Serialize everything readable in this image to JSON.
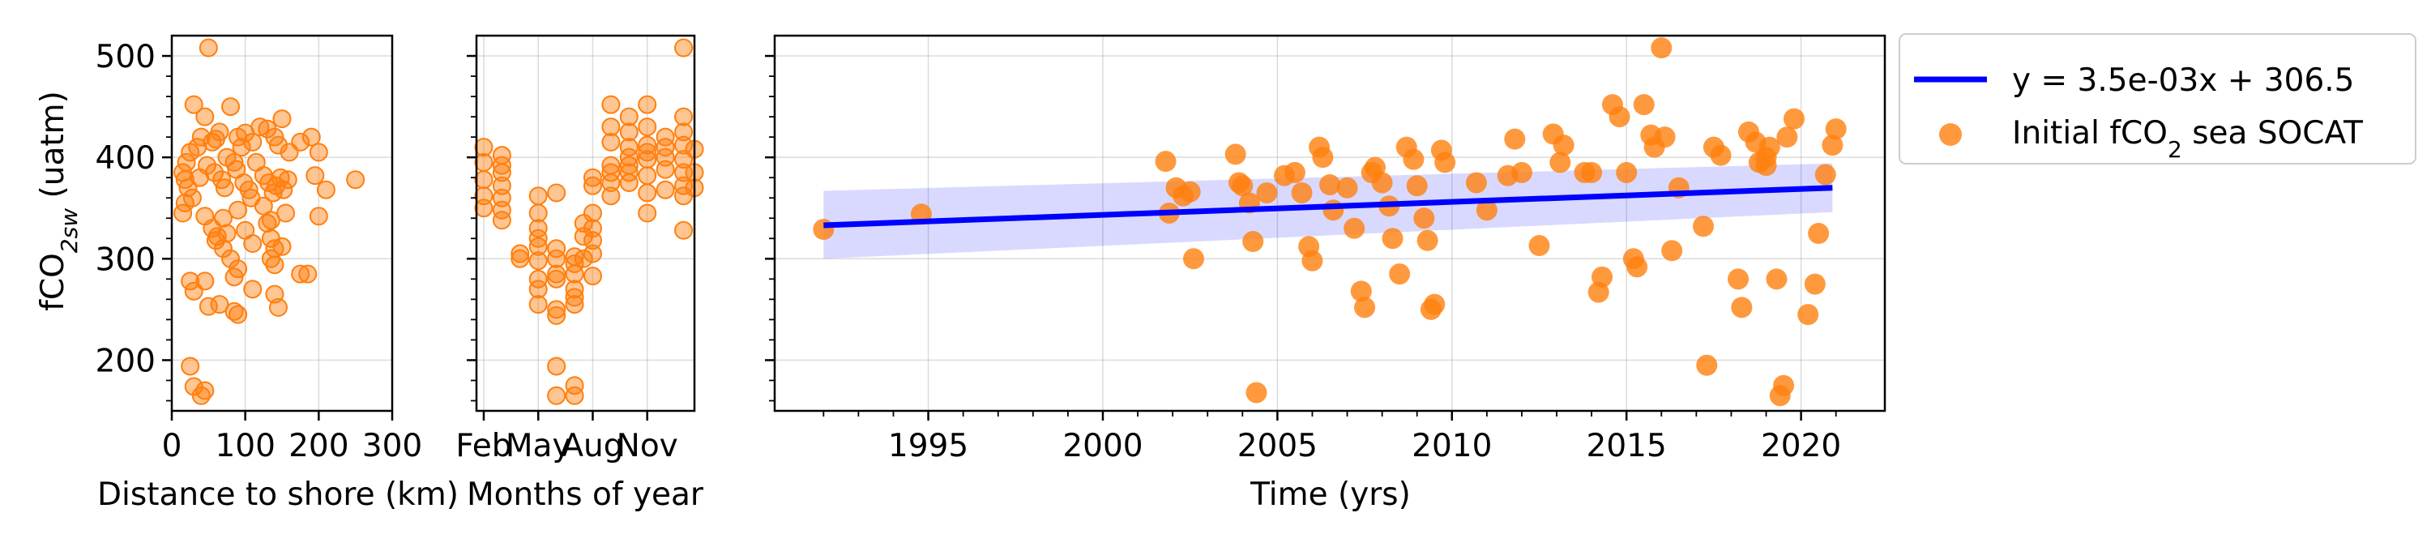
{
  "chart_data": [
    {
      "type": "scatter",
      "panel": "distance",
      "xlabel": "Distance to shore (km)",
      "ylabel_main": "fCO",
      "ylabel_sub": "2sw",
      "ylabel_unit": " (uatm)",
      "xlim": [
        0,
        300
      ],
      "ylim": [
        150,
        520
      ],
      "xticks": [
        0,
        100,
        200,
        300
      ],
      "yticks": [
        200,
        300,
        400,
        500
      ],
      "grid": true,
      "marker_color": "#ff7f0e",
      "points": [
        [
          50,
          508
        ],
        [
          30,
          452
        ],
        [
          45,
          440
        ],
        [
          80,
          450
        ],
        [
          120,
          430
        ],
        [
          150,
          438
        ],
        [
          20,
          395
        ],
        [
          25,
          405
        ],
        [
          35,
          410
        ],
        [
          40,
          420
        ],
        [
          55,
          415
        ],
        [
          60,
          418
        ],
        [
          65,
          425
        ],
        [
          75,
          400
        ],
        [
          85,
          395
        ],
        [
          90,
          420
        ],
        [
          95,
          410
        ],
        [
          100,
          424
        ],
        [
          110,
          415
        ],
        [
          130,
          428
        ],
        [
          140,
          420
        ],
        [
          145,
          412
        ],
        [
          160,
          405
        ],
        [
          175,
          415
        ],
        [
          190,
          420
        ],
        [
          200,
          405
        ],
        [
          15,
          385
        ],
        [
          18,
          378
        ],
        [
          22,
          370
        ],
        [
          28,
          360
        ],
        [
          38,
          380
        ],
        [
          48,
          392
        ],
        [
          58,
          385
        ],
        [
          68,
          378
        ],
        [
          72,
          370
        ],
        [
          88,
          388
        ],
        [
          98,
          375
        ],
        [
          105,
          368
        ],
        [
          115,
          395
        ],
        [
          125,
          382
        ],
        [
          132,
          375
        ],
        [
          138,
          365
        ],
        [
          142,
          372
        ],
        [
          148,
          380
        ],
        [
          152,
          368
        ],
        [
          158,
          378
        ],
        [
          195,
          382
        ],
        [
          210,
          368
        ],
        [
          250,
          378
        ],
        [
          15,
          345
        ],
        [
          18,
          355
        ],
        [
          45,
          342
        ],
        [
          70,
          340
        ],
        [
          90,
          348
        ],
        [
          125,
          352
        ],
        [
          135,
          338
        ],
        [
          155,
          345
        ],
        [
          200,
          342
        ],
        [
          108,
          360
        ],
        [
          55,
          330
        ],
        [
          60,
          318
        ],
        [
          62,
          322
        ],
        [
          70,
          310
        ],
        [
          75,
          325
        ],
        [
          80,
          300
        ],
        [
          100,
          328
        ],
        [
          110,
          315
        ],
        [
          130,
          335
        ],
        [
          135,
          320
        ],
        [
          140,
          310
        ],
        [
          150,
          312
        ],
        [
          135,
          300
        ],
        [
          140,
          294
        ],
        [
          25,
          278
        ],
        [
          30,
          268
        ],
        [
          45,
          278
        ],
        [
          85,
          282
        ],
        [
          90,
          290
        ],
        [
          110,
          270
        ],
        [
          140,
          265
        ],
        [
          175,
          285
        ],
        [
          185,
          285
        ],
        [
          50,
          253
        ],
        [
          65,
          255
        ],
        [
          85,
          248
        ],
        [
          90,
          245
        ],
        [
          145,
          252
        ],
        [
          25,
          194
        ],
        [
          30,
          174
        ],
        [
          40,
          165
        ],
        [
          45,
          170
        ]
      ]
    },
    {
      "type": "scatter",
      "panel": "months",
      "xlabel": "Months of year",
      "xlim": [
        0.6,
        12.6
      ],
      "ylim": [
        150,
        520
      ],
      "xticks": [
        1,
        4,
        7,
        10
      ],
      "xticklabels": [
        "Feb",
        "May",
        "Aug",
        "Nov"
      ],
      "grid": true,
      "marker_color": "#ff7f0e",
      "points": [
        [
          1,
          410
        ],
        [
          1,
          395
        ],
        [
          1,
          378
        ],
        [
          1,
          362
        ],
        [
          1,
          350
        ],
        [
          2,
          402
        ],
        [
          2,
          392
        ],
        [
          2,
          385
        ],
        [
          2,
          372
        ],
        [
          2,
          360
        ],
        [
          2,
          348
        ],
        [
          2,
          338
        ],
        [
          3,
          305
        ],
        [
          3,
          300
        ],
        [
          4,
          362
        ],
        [
          4,
          345
        ],
        [
          4,
          330
        ],
        [
          4,
          320
        ],
        [
          4,
          312
        ],
        [
          4,
          298
        ],
        [
          4,
          280
        ],
        [
          4,
          270
        ],
        [
          4,
          255
        ],
        [
          5,
          310
        ],
        [
          5,
          300
        ],
        [
          5,
          285
        ],
        [
          5,
          280
        ],
        [
          5,
          250
        ],
        [
          5,
          244
        ],
        [
          5,
          194
        ],
        [
          5,
          165
        ],
        [
          5,
          365
        ],
        [
          6,
          302
        ],
        [
          6,
          295
        ],
        [
          6,
          285
        ],
        [
          6,
          270
        ],
        [
          6,
          262
        ],
        [
          6,
          255
        ],
        [
          6,
          175
        ],
        [
          6,
          165
        ],
        [
          6.5,
          335
        ],
        [
          6.5,
          322
        ],
        [
          6.5,
          300
        ],
        [
          7,
          380
        ],
        [
          7,
          372
        ],
        [
          7,
          345
        ],
        [
          7,
          330
        ],
        [
          7,
          318
        ],
        [
          7,
          305
        ],
        [
          7,
          283
        ],
        [
          8,
          452
        ],
        [
          8,
          430
        ],
        [
          8,
          415
        ],
        [
          8,
          392
        ],
        [
          8,
          385
        ],
        [
          8,
          375
        ],
        [
          8,
          362
        ],
        [
          9,
          440
        ],
        [
          9,
          425
        ],
        [
          9,
          410
        ],
        [
          9,
          400
        ],
        [
          9,
          392
        ],
        [
          9,
          385
        ],
        [
          9,
          375
        ],
        [
          10,
          452
        ],
        [
          10,
          430
        ],
        [
          10,
          412
        ],
        [
          10,
          405
        ],
        [
          10,
          398
        ],
        [
          10,
          382
        ],
        [
          10,
          365
        ],
        [
          10,
          345
        ],
        [
          11,
          420
        ],
        [
          11,
          410
        ],
        [
          11,
          400
        ],
        [
          11,
          388
        ],
        [
          11,
          368
        ],
        [
          12,
          508
        ],
        [
          12,
          440
        ],
        [
          12,
          425
        ],
        [
          12,
          412
        ],
        [
          12,
          398
        ],
        [
          12,
          385
        ],
        [
          12,
          372
        ],
        [
          12,
          362
        ],
        [
          12,
          328
        ],
        [
          12.6,
          408
        ],
        [
          12.6,
          385
        ],
        [
          12.6,
          370
        ]
      ]
    },
    {
      "type": "scatter",
      "panel": "time",
      "xlabel": "Time (yrs)",
      "xlim": [
        1990.6,
        2022.4
      ],
      "ylim": [
        150,
        520
      ],
      "xticks": [
        1995,
        2000,
        2005,
        2010,
        2015,
        2020
      ],
      "grid": true,
      "marker_color": "#ff7f0e",
      "fit": {
        "label": "y = 3.5e-03x + 306.5",
        "x0": 1992.0,
        "y0": 333,
        "x1": 2020.9,
        "y1": 370,
        "band": [
          [
            1992.0,
            300,
            367
          ],
          [
            2020.9,
            346,
            394
          ]
        ],
        "line_color": "#0000ff",
        "band_color": "#0000ff"
      },
      "legend": {
        "fit_label": "y = 3.5e-03x + 306.5",
        "scatter_label_pre": "Initial fCO",
        "scatter_label_sub": "2",
        "scatter_label_post": " sea SOCAT",
        "position": "outside-right-top"
      },
      "points": [
        [
          1992.0,
          329
        ],
        [
          1994.8,
          344
        ],
        [
          2001.8,
          396
        ],
        [
          2001.9,
          345
        ],
        [
          2002.1,
          370
        ],
        [
          2002.3,
          362
        ],
        [
          2002.5,
          366
        ],
        [
          2002.6,
          300
        ],
        [
          2003.8,
          403
        ],
        [
          2003.9,
          375
        ],
        [
          2004.0,
          372
        ],
        [
          2004.2,
          355
        ],
        [
          2004.3,
          317
        ],
        [
          2004.4,
          168
        ],
        [
          2004.7,
          365
        ],
        [
          2005.2,
          382
        ],
        [
          2005.5,
          385
        ],
        [
          2005.7,
          365
        ],
        [
          2005.9,
          312
        ],
        [
          2006.0,
          298
        ],
        [
          2006.2,
          410
        ],
        [
          2006.3,
          400
        ],
        [
          2006.5,
          373
        ],
        [
          2006.6,
          348
        ],
        [
          2007.0,
          370
        ],
        [
          2007.2,
          330
        ],
        [
          2007.4,
          268
        ],
        [
          2007.5,
          252
        ],
        [
          2007.7,
          385
        ],
        [
          2007.8,
          390
        ],
        [
          2008.0,
          375
        ],
        [
          2008.2,
          352
        ],
        [
          2008.3,
          320
        ],
        [
          2008.5,
          285
        ],
        [
          2008.7,
          410
        ],
        [
          2008.9,
          398
        ],
        [
          2009.0,
          372
        ],
        [
          2009.2,
          340
        ],
        [
          2009.3,
          318
        ],
        [
          2009.4,
          250
        ],
        [
          2009.5,
          255
        ],
        [
          2009.7,
          407
        ],
        [
          2009.8,
          395
        ],
        [
          2010.7,
          375
        ],
        [
          2011.0,
          348
        ],
        [
          2011.6,
          382
        ],
        [
          2011.8,
          418
        ],
        [
          2012.0,
          385
        ],
        [
          2012.5,
          313
        ],
        [
          2012.9,
          423
        ],
        [
          2013.1,
          395
        ],
        [
          2013.2,
          412
        ],
        [
          2013.8,
          385
        ],
        [
          2014.0,
          385
        ],
        [
          2014.2,
          267
        ],
        [
          2014.3,
          282
        ],
        [
          2014.6,
          452
        ],
        [
          2014.8,
          440
        ],
        [
          2015.0,
          385
        ],
        [
          2015.2,
          300
        ],
        [
          2015.3,
          292
        ],
        [
          2015.5,
          452
        ],
        [
          2015.7,
          422
        ],
        [
          2015.8,
          410
        ],
        [
          2016.0,
          508
        ],
        [
          2016.1,
          420
        ],
        [
          2016.3,
          308
        ],
        [
          2016.5,
          370
        ],
        [
          2017.2,
          332
        ],
        [
          2017.5,
          410
        ],
        [
          2017.7,
          402
        ],
        [
          2018.2,
          280
        ],
        [
          2018.3,
          252
        ],
        [
          2018.5,
          425
        ],
        [
          2018.7,
          415
        ],
        [
          2018.8,
          395
        ],
        [
          2019.0,
          400
        ],
        [
          2019.1,
          410
        ],
        [
          2019.3,
          280
        ],
        [
          2019.5,
          175
        ],
        [
          2019.4,
          165
        ],
        [
          2019.6,
          420
        ],
        [
          2019.8,
          438
        ],
        [
          2020.2,
          245
        ],
        [
          2020.4,
          275
        ],
        [
          2020.5,
          325
        ],
        [
          2020.7,
          383
        ],
        [
          2020.9,
          412
        ],
        [
          2021.0,
          428
        ],
        [
          2017.3,
          195
        ],
        [
          2019.0,
          392
        ]
      ]
    }
  ]
}
